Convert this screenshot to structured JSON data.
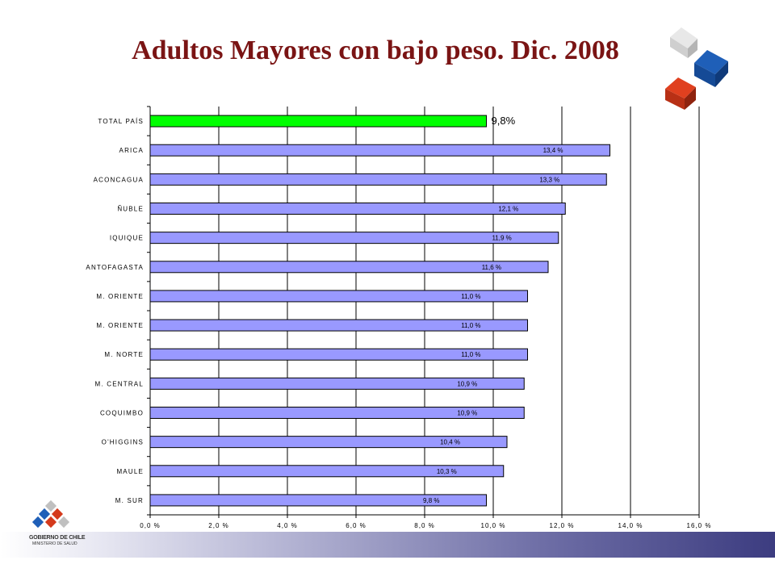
{
  "title": "Adultos Mayores con bajo peso. Dic. 2008",
  "logo": {
    "org_name": "GOBIERNO DE CHILE",
    "org_sub": "MINISTERIO DE SALUD"
  },
  "colors": {
    "title": "#7a1414",
    "bar": "#9999ff",
    "highlight_bar": "#00ff00",
    "band_dark": "#3c3c80"
  },
  "chart_data": {
    "type": "bar",
    "orientation": "horizontal",
    "title": "Adultos Mayores con bajo peso. Dic. 2008",
    "xlabel": "",
    "ylabel": "",
    "xlim": [
      0,
      16
    ],
    "x_ticks": [
      "0,0 %",
      "2,0 %",
      "4,0 %",
      "6,0 %",
      "8,0 %",
      "10,0 %",
      "12,0 %",
      "14,0 %",
      "16,0 %"
    ],
    "grid": "vertical",
    "categories": [
      "TOTAL PAÍS",
      "ARICA",
      "ACONCAGUA",
      "ÑUBLE",
      "IQUIQUE",
      "ANTOFAGASTA",
      "M. ORIENTE",
      "M. ORIENTE",
      "M. NORTE",
      "M. CENTRAL",
      "COQUIMBO",
      "O'HIGGINS",
      "MAULE",
      "M. SUR"
    ],
    "values": [
      9.8,
      13.4,
      13.3,
      12.1,
      11.9,
      11.6,
      11.0,
      11.0,
      11.0,
      10.9,
      10.9,
      10.4,
      10.3,
      9.8
    ],
    "data_labels": [
      "9,8%",
      "13,4 %",
      "13,3 %",
      "12,1 %",
      "11,9 %",
      "11,6 %",
      "11,0 %",
      "11,0 %",
      "11,0 %",
      "10,9 %",
      "10,9 %",
      "10,4 %",
      "10,3 %",
      "9,8 %"
    ],
    "highlight_index": 0
  }
}
